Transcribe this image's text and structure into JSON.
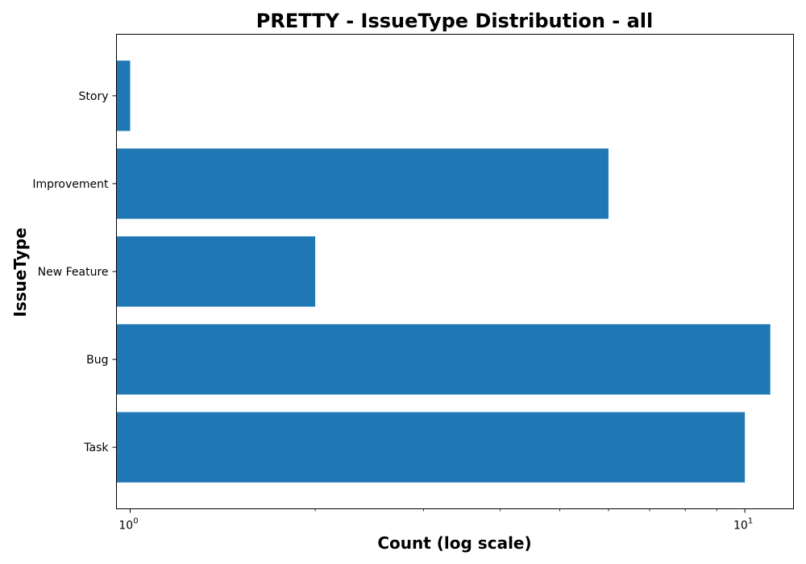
{
  "chart_data": {
    "type": "bar",
    "orientation": "horizontal",
    "title": "PRETTY - IssueType Distribution - all",
    "xlabel": "Count (log scale)",
    "ylabel": "IssueType",
    "x_scale": "log",
    "xlim": [
      0.95,
      12
    ],
    "categories": [
      "Task",
      "Bug",
      "New Feature",
      "Improvement",
      "Story"
    ],
    "values": [
      10,
      11,
      2,
      6,
      1
    ],
    "x_major_ticks": [
      {
        "base": "10",
        "exp": "0",
        "value": 1
      },
      {
        "base": "10",
        "exp": "1",
        "value": 10
      }
    ],
    "x_minor_ticks": [
      2,
      3,
      4,
      5,
      6,
      7,
      8,
      9
    ],
    "bar_color": "#1f77b4",
    "grid": false,
    "legend": "none"
  }
}
